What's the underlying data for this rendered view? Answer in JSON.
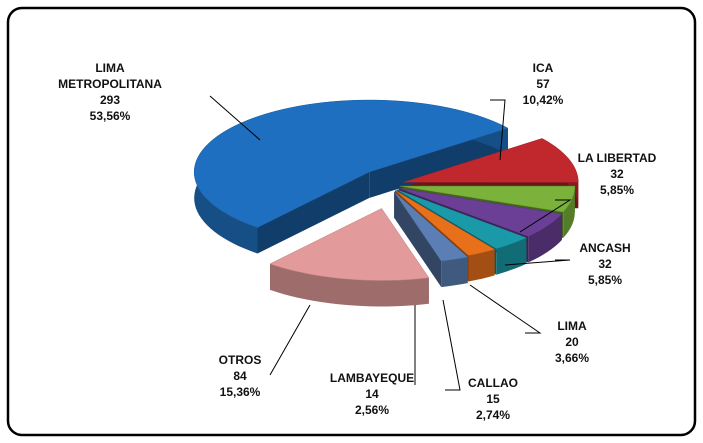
{
  "chart_data": {
    "type": "pie",
    "categories": [
      "ICA",
      "LA LIBERTAD",
      "ANCASH",
      "LIMA",
      "CALLAO",
      "LAMBAYEQUE",
      "OTROS",
      "LIMA METROPOLITANA"
    ],
    "values": [
      57,
      32,
      32,
      20,
      15,
      14,
      84,
      293
    ],
    "percent": {
      "values": [
        10.42,
        5.85,
        5.85,
        3.66,
        2.74,
        2.56,
        15.36,
        53.56
      ],
      "value_labels": [
        "10,42%",
        "5,85%",
        "5,85%",
        "3,66%",
        "2,74%",
        "2,56%",
        "15,36%",
        "53,56%"
      ]
    },
    "colors": [
      "#c0282d",
      "#7ab23b",
      "#6a3f95",
      "#1a9aa8",
      "#e9701a",
      "#5b7fb5",
      "#e39a9a",
      "#1f6fc0"
    ]
  }
}
